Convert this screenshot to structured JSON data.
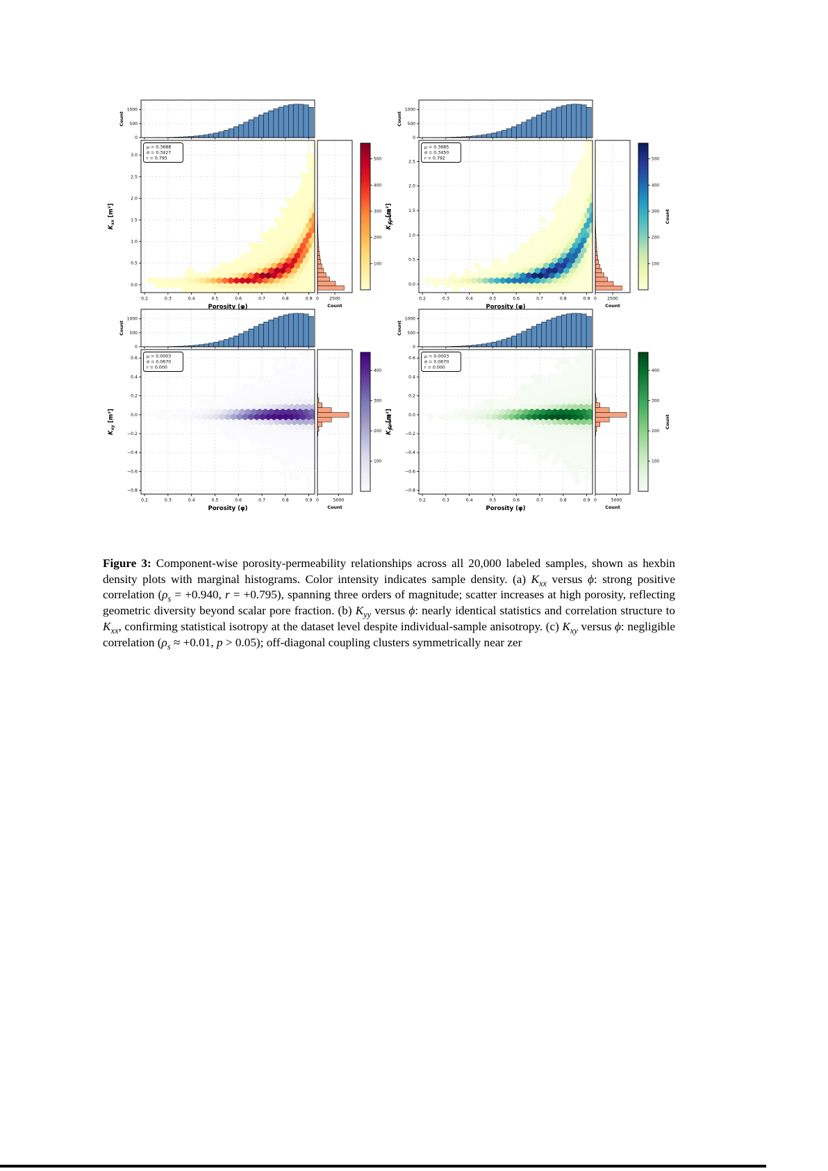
{
  "page": {
    "background": "#ffffff"
  },
  "caption": {
    "runs": [
      {
        "t": "Figure 3:",
        "b": true
      },
      {
        "t": " Component-wise porosity-permeability relationships across all 20,000 labeled samples, shown as hexbin density plots with marginal histograms. Color intensity indicates sample density. (a) "
      },
      {
        "t": "K",
        "i": true
      },
      {
        "t": "xx",
        "i": true,
        "sub": true
      },
      {
        "t": " versus "
      },
      {
        "t": "ϕ",
        "i": true
      },
      {
        "t": ": strong positive correlation ("
      },
      {
        "t": "ρ",
        "i": true
      },
      {
        "t": "s",
        "i": true,
        "sub": true
      },
      {
        "t": " = +0.940, "
      },
      {
        "t": "r",
        "i": true
      },
      {
        "t": " = +0.795), spanning three orders of magnitude; scatter increases at high porosity, reflecting geometric diversity beyond scalar pore fraction. (b) "
      },
      {
        "t": "K",
        "i": true
      },
      {
        "t": "yy",
        "i": true,
        "sub": true
      },
      {
        "t": " versus "
      },
      {
        "t": "ϕ",
        "i": true
      },
      {
        "t": ": nearly identical statistics and correlation structure to "
      },
      {
        "t": "K",
        "i": true
      },
      {
        "t": "xx",
        "i": true,
        "sub": true
      },
      {
        "t": ", confirming statistical isotropy at the dataset level despite individual-sample anisotropy. (c) "
      },
      {
        "t": "K",
        "i": true
      },
      {
        "t": "xy",
        "i": true,
        "sub": true
      },
      {
        "t": " versus "
      },
      {
        "t": "ϕ",
        "i": true
      },
      {
        "t": ": negligible correlation ("
      },
      {
        "t": "ρ",
        "i": true
      },
      {
        "t": "s",
        "i": true,
        "sub": true
      },
      {
        "t": " ≈ +0.01, "
      },
      {
        "t": "p",
        "i": true
      },
      {
        "t": " > 0.05); off-diagonal coupling clusters symmetrically near zer"
      }
    ]
  },
  "chart_data": {
    "type": "hexbin",
    "shared": {
      "xlabel": "Porosity (φ)",
      "xlim": [
        0.185,
        0.925
      ],
      "x_ticks": [
        0.2,
        0.3,
        0.4,
        0.5,
        0.6,
        0.7,
        0.8,
        0.9
      ],
      "grid": true,
      "porosity_hist": {
        "label": "Count",
        "ticks": [
          0,
          500,
          1000
        ],
        "ymax": 1340,
        "start": 0.24,
        "bin_width": 0.02125,
        "values": [
          2,
          4,
          6,
          10,
          15,
          22,
          30,
          42,
          58,
          78,
          102,
          132,
          168,
          210,
          262,
          322,
          390,
          468,
          552,
          640,
          726,
          810,
          888,
          962,
          1030,
          1092,
          1142,
          1178,
          1195,
          1192,
          1170,
          1085
        ]
      },
      "colormaps": {
        "YlOrRd": [
          "#ffffcc",
          "#ffeda0",
          "#fed976",
          "#feb24c",
          "#fd8d3c",
          "#fc4e2a",
          "#e31a1c",
          "#bd0026",
          "#800026"
        ],
        "YlGnBu": [
          "#ffffd9",
          "#edf8b1",
          "#c7e9b4",
          "#7fcdbb",
          "#41b6c4",
          "#1d91c0",
          "#225ea8",
          "#253494",
          "#081d58"
        ],
        "Purples": [
          "#fcfbfd",
          "#efedf5",
          "#dadaeb",
          "#bcbddc",
          "#9e9ac8",
          "#807dba",
          "#6a51a3",
          "#54278f",
          "#3f007d"
        ],
        "Greens": [
          "#f7fcf5",
          "#e5f5e0",
          "#c7e9c0",
          "#a1d99b",
          "#74c476",
          "#41ab5d",
          "#238b45",
          "#006d2c",
          "#00441b"
        ]
      },
      "colors": {
        "top_hist_fill": "#5b8cbe",
        "side_hist_fill": "#f8a17e",
        "bar_edge": "#000000",
        "grid": "#d9d9d9"
      }
    },
    "panels": [
      {
        "id": "a",
        "ylabel": {
          "k": "K",
          "sub": "xx",
          "unit": " [m²]"
        },
        "ylim": [
          -0.18,
          3.34
        ],
        "y_ticks": [
          0.0,
          0.5,
          1.0,
          1.5,
          2.0,
          2.5,
          3.0
        ],
        "stats": [
          "μ = 0.3688",
          "σ = 0.3427",
          "r = 0.795"
        ],
        "colormap": "YlOrRd",
        "vmax": 560,
        "colorbar_ticks": [
          100,
          200,
          300,
          400,
          500
        ],
        "colorbar_label": "Count",
        "ridge": [
          [
            0.2,
            0.038
          ],
          [
            0.3,
            0.048
          ],
          [
            0.4,
            0.058
          ],
          [
            0.5,
            0.072
          ],
          [
            0.55,
            0.085
          ],
          [
            0.6,
            0.105
          ],
          [
            0.65,
            0.135
          ],
          [
            0.7,
            0.185
          ],
          [
            0.74,
            0.245
          ],
          [
            0.78,
            0.33
          ],
          [
            0.82,
            0.46
          ],
          [
            0.86,
            0.68
          ],
          [
            0.89,
            0.95
          ],
          [
            0.92,
            1.45
          ]
        ],
        "spread": {
          "base": 0.025,
          "coef": 0.55,
          "pow": 3,
          "ref": 0.05
        },
        "broad": {
          "mult": 3.5,
          "amp": 0.035
        },
        "right_hist": {
          "label": "Count",
          "ticks": [
            0,
            2500
          ],
          "xmax": 5000,
          "start": -0.12,
          "bin_width": 0.1,
          "values": [
            3850,
            2600,
            1760,
            1240,
            890,
            650,
            480,
            360,
            272,
            206,
            157,
            120,
            92,
            71,
            55,
            42,
            33,
            25,
            19,
            15,
            12,
            9,
            7,
            6,
            5,
            4,
            3,
            2,
            2,
            1,
            1,
            1,
            1,
            0
          ]
        }
      },
      {
        "id": "b",
        "ylabel": {
          "k": "K",
          "sub": "yy",
          "unit": " [m²]"
        },
        "ylim": [
          -0.17,
          2.93
        ],
        "y_ticks": [
          0.0,
          0.5,
          1.0,
          1.5,
          2.0,
          2.5
        ],
        "stats": [
          "μ = 0.3685",
          "σ = 0.3450",
          "r = 0.792"
        ],
        "colormap": "YlGnBu",
        "vmax": 560,
        "colorbar_ticks": [
          100,
          200,
          300,
          400,
          500
        ],
        "colorbar_label": "Count",
        "ridge": [
          [
            0.2,
            0.038
          ],
          [
            0.3,
            0.048
          ],
          [
            0.4,
            0.058
          ],
          [
            0.5,
            0.072
          ],
          [
            0.55,
            0.085
          ],
          [
            0.6,
            0.105
          ],
          [
            0.65,
            0.135
          ],
          [
            0.7,
            0.185
          ],
          [
            0.74,
            0.245
          ],
          [
            0.78,
            0.33
          ],
          [
            0.82,
            0.46
          ],
          [
            0.86,
            0.68
          ],
          [
            0.89,
            0.95
          ],
          [
            0.92,
            1.45
          ]
        ],
        "spread": {
          "base": 0.025,
          "coef": 0.55,
          "pow": 3,
          "ref": 0.05
        },
        "broad": {
          "mult": 3.5,
          "amp": 0.035
        },
        "right_hist": {
          "label": "Count",
          "ticks": [
            0,
            2500
          ],
          "xmax": 5000,
          "start": -0.12,
          "bin_width": 0.088,
          "values": [
            3850,
            2600,
            1760,
            1240,
            890,
            650,
            480,
            360,
            272,
            206,
            157,
            120,
            92,
            71,
            55,
            42,
            33,
            25,
            19,
            15,
            12,
            9,
            7,
            6,
            5,
            4,
            3,
            2,
            2,
            1,
            1,
            1,
            1,
            0
          ]
        }
      },
      {
        "id": "c",
        "ylabel": {
          "k": "K",
          "sub": "xy",
          "unit": " [m²]"
        },
        "ylim": [
          -0.84,
          0.69
        ],
        "y_ticks": [
          0.6,
          0.4,
          0.2,
          0.0,
          -0.2,
          -0.4,
          -0.6,
          -0.8
        ],
        "stats": [
          "μ = 0.0003",
          "σ = 0.0670",
          "r = 0.000"
        ],
        "colormap": "Purples",
        "vmax": 460,
        "colorbar_ticks": [
          100,
          200,
          300,
          400
        ],
        "colorbar_label": "Count",
        "ridge": [
          [
            0.2,
            0.0
          ],
          [
            0.92,
            0.0
          ]
        ],
        "spread": {
          "base": 0.008,
          "coef": 0.115,
          "pow": 2,
          "ref": 0.02
        },
        "broad": {
          "mult": 4,
          "amp": 0.03
        },
        "right_hist": {
          "label": "Count",
          "ticks": [
            0,
            5000
          ],
          "xmax": 8200,
          "start": -0.78,
          "bin_width": 0.0503,
          "values": [
            0,
            0,
            0,
            0,
            0,
            0,
            1,
            2,
            4,
            10,
            30,
            100,
            330,
            1100,
            3300,
            7400,
            3300,
            1100,
            330,
            100,
            30,
            10,
            4,
            2,
            1,
            0,
            0,
            0,
            0,
            0
          ]
        }
      },
      {
        "id": "d",
        "ylabel": {
          "k": "K",
          "sub": "yx",
          "unit": " [m²]"
        },
        "ylim": [
          -0.84,
          0.69
        ],
        "y_ticks": [
          0.6,
          0.4,
          0.2,
          0.0,
          -0.2,
          -0.4,
          -0.6,
          -0.8
        ],
        "stats": [
          "μ = 0.0003",
          "σ = 0.0670",
          "r = 0.000"
        ],
        "colormap": "Greens",
        "vmax": 460,
        "colorbar_ticks": [
          100,
          200,
          300,
          400
        ],
        "colorbar_label": "Count",
        "ridge": [
          [
            0.2,
            0.0
          ],
          [
            0.92,
            0.0
          ]
        ],
        "spread": {
          "base": 0.008,
          "coef": 0.115,
          "pow": 2,
          "ref": 0.02
        },
        "broad": {
          "mult": 4,
          "amp": 0.03
        },
        "right_hist": {
          "label": "Count",
          "ticks": [
            0,
            5000
          ],
          "xmax": 8200,
          "start": -0.78,
          "bin_width": 0.0503,
          "values": [
            0,
            0,
            0,
            0,
            0,
            0,
            1,
            2,
            4,
            10,
            30,
            100,
            330,
            1100,
            3300,
            7400,
            3300,
            1100,
            330,
            100,
            30,
            10,
            4,
            2,
            1,
            0,
            0,
            0,
            0,
            0
          ]
        }
      }
    ]
  }
}
